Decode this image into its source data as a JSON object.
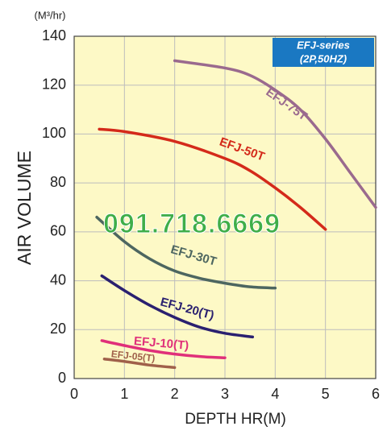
{
  "chart_data": {
    "type": "line",
    "x_label": "DEPTH HR(M)",
    "y_label": "AIR VOLUME",
    "y_unit": "(M³/hr)",
    "annotations": [
      "EFJ-series",
      "(2P,50HZ)",
      "091.718.6669"
    ],
    "xlim": [
      0,
      6
    ],
    "xticks": [
      0,
      1,
      2,
      3,
      4,
      5,
      6
    ],
    "ylim": [
      0,
      140
    ],
    "yticks": [
      0,
      20,
      40,
      60,
      80,
      100,
      120,
      140
    ],
    "grid": true,
    "background": "#fdf9c6",
    "series": [
      {
        "name": "EFJ-75T",
        "color": "#9a6a8e",
        "x": [
          2,
          3,
          3.5,
          4,
          4.5,
          5,
          5.5,
          6
        ],
        "values": [
          130,
          127,
          124,
          118,
          110,
          98,
          84,
          70
        ]
      },
      {
        "name": "EFJ-50T",
        "color": "#d42a1a",
        "x": [
          0.5,
          1,
          2,
          3,
          3.5,
          4,
          4.5,
          5
        ],
        "values": [
          102,
          101,
          97,
          90,
          85,
          78,
          70,
          61
        ]
      },
      {
        "name": "EFJ-30T",
        "color": "#4d6660",
        "x": [
          0.45,
          1,
          1.5,
          2,
          2.5,
          3,
          3.5,
          4
        ],
        "values": [
          66,
          56,
          49,
          44,
          41,
          39,
          37.5,
          37
        ]
      },
      {
        "name": "EFJ-20(T)",
        "color": "#2a2070",
        "x": [
          0.55,
          1,
          1.5,
          2,
          2.5,
          3,
          3.55
        ],
        "values": [
          42,
          36,
          30,
          25,
          21,
          18.5,
          17
        ]
      },
      {
        "name": "EFJ-10(T)",
        "color": "#e0307a",
        "x": [
          0.55,
          1,
          1.5,
          2,
          2.5,
          3
        ],
        "values": [
          15.5,
          13.5,
          11.5,
          10,
          9,
          8.5
        ]
      },
      {
        "name": "EFJ-05(T)",
        "color": "#a0604a",
        "x": [
          0.6,
          1,
          1.5,
          2
        ],
        "values": [
          8,
          7,
          5.5,
          4.5
        ]
      }
    ]
  }
}
